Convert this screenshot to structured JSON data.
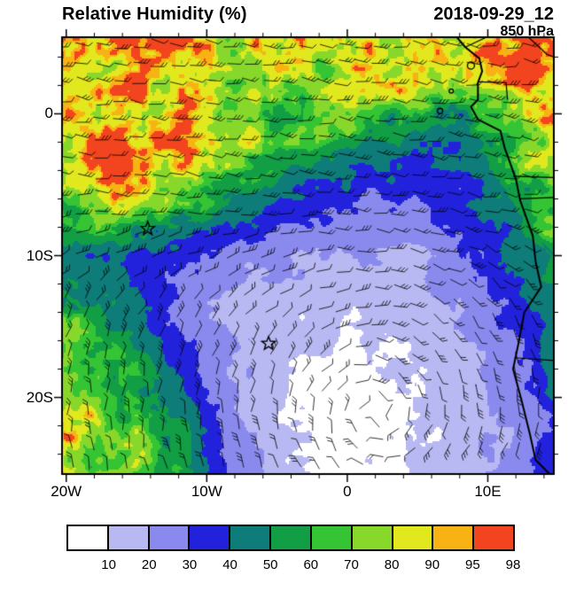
{
  "header": {
    "title": "Relative Humidity (%)",
    "datetime": "2018-09-29_12",
    "level": "850 hPa"
  },
  "chart_data": {
    "type": "heatmap",
    "title": "Relative Humidity (%)",
    "valid_time": "2018-09-29_12",
    "level": "850 hPa",
    "units": "%",
    "overlay": "wind-barbs",
    "x_axis": {
      "range": [
        -20.3,
        14.7
      ],
      "ticks": [
        {
          "lon": -20,
          "label": "20W"
        },
        {
          "lon": -10,
          "label": "10W"
        },
        {
          "lon": 0,
          "label": "0"
        },
        {
          "lon": 10,
          "label": "10E"
        }
      ],
      "minor_tick_step_deg": 2
    },
    "y_axis": {
      "range": [
        -25.4,
        5.4
      ],
      "ticks": [
        {
          "lat": 0,
          "label": "0"
        },
        {
          "lat": -10,
          "label": "10S"
        },
        {
          "lat": -20,
          "label": "20S"
        }
      ],
      "minor_tick_step_deg": 2
    },
    "colorbar": {
      "levels": [
        10,
        20,
        30,
        40,
        50,
        60,
        70,
        80,
        90,
        95,
        98
      ],
      "colors": [
        "#ffffff",
        "#b8b8f2",
        "#8a8aee",
        "#2222dc",
        "#0e7c78",
        "#129e44",
        "#34c434",
        "#88d82c",
        "#e2e81e",
        "#f8b214",
        "#f2441e"
      ]
    },
    "rh_grid": {
      "lons": [
        -20,
        -16,
        -12,
        -8,
        -4,
        0,
        4,
        8,
        12,
        16
      ],
      "lats": [
        6,
        2,
        -2,
        -6,
        -10,
        -14,
        -18,
        -22,
        -26
      ],
      "values": [
        [
          85,
          88,
          95,
          80,
          90,
          96,
          85,
          80,
          96,
          97
        ],
        [
          90,
          92,
          86,
          72,
          68,
          80,
          88,
          72,
          95,
          95
        ],
        [
          92,
          96,
          92,
          82,
          62,
          52,
          45,
          40,
          70,
          95
        ],
        [
          68,
          90,
          72,
          52,
          38,
          34,
          30,
          34,
          55,
          85
        ],
        [
          40,
          42,
          34,
          25,
          21,
          19,
          18,
          27,
          42,
          62
        ],
        [
          60,
          42,
          26,
          17,
          15,
          11,
          14,
          20,
          34,
          48
        ],
        [
          75,
          62,
          38,
          20,
          10,
          7,
          10,
          16,
          26,
          55
        ],
        [
          85,
          70,
          52,
          24,
          9,
          5,
          8,
          13,
          22,
          35
        ],
        [
          88,
          68,
          56,
          28,
          12,
          5,
          10,
          16,
          26,
          38
        ]
      ]
    },
    "markers": [
      {
        "type": "star",
        "lon": -14.2,
        "lat": -8.1
      },
      {
        "type": "star",
        "lon": -5.6,
        "lat": -16.2
      }
    ],
    "wind_barbs": {
      "circulation_center": {
        "lon": 2,
        "lat": -21
      },
      "tropical_easterly_south_limit": -5
    },
    "coastline": [
      [
        7.8,
        5.4
      ],
      [
        8.4,
        4.7
      ],
      [
        9.4,
        3.9
      ],
      [
        9.6,
        3.0
      ],
      [
        9.3,
        2.2
      ],
      [
        9.3,
        1.0
      ],
      [
        8.8,
        0.5
      ],
      [
        9.3,
        -0.4
      ],
      [
        10.9,
        -1.2
      ],
      [
        11.2,
        -2.4
      ],
      [
        12.0,
        -4.6
      ],
      [
        12.3,
        -6.1
      ],
      [
        13.2,
        -8.6
      ],
      [
        13.4,
        -10.4
      ],
      [
        13.8,
        -12.2
      ],
      [
        12.6,
        -14.0
      ],
      [
        12.2,
        -16.1
      ],
      [
        11.8,
        -18.0
      ],
      [
        12.4,
        -20.2
      ],
      [
        13.0,
        -22.6
      ],
      [
        13.4,
        -24.4
      ],
      [
        14.4,
        -25.4
      ]
    ],
    "islands": [
      {
        "lon": 8.8,
        "lat": 3.4,
        "r": 4
      },
      {
        "lon": 7.4,
        "lat": 1.6,
        "r": 2.4
      },
      {
        "lon": 6.6,
        "lat": 0.2,
        "r": 3
      }
    ],
    "borders": [
      [
        [
          9.3,
          2.25
        ],
        [
          11.3,
          2.2
        ],
        [
          11.4,
          1.0
        ]
      ],
      [
        [
          11.8,
          -4.4
        ],
        [
          14.7,
          -4.5
        ]
      ],
      [
        [
          12.3,
          -6.0
        ],
        [
          14.7,
          -5.9
        ]
      ],
      [
        [
          11.9,
          -17.2
        ],
        [
          14.7,
          -17.4
        ]
      ],
      [
        [
          8.4,
          4.7
        ],
        [
          9.9,
          5.4
        ]
      ],
      [
        [
          12.9,
          5.4
        ],
        [
          14.2,
          4.2
        ],
        [
          14.7,
          4.0
        ]
      ]
    ]
  }
}
